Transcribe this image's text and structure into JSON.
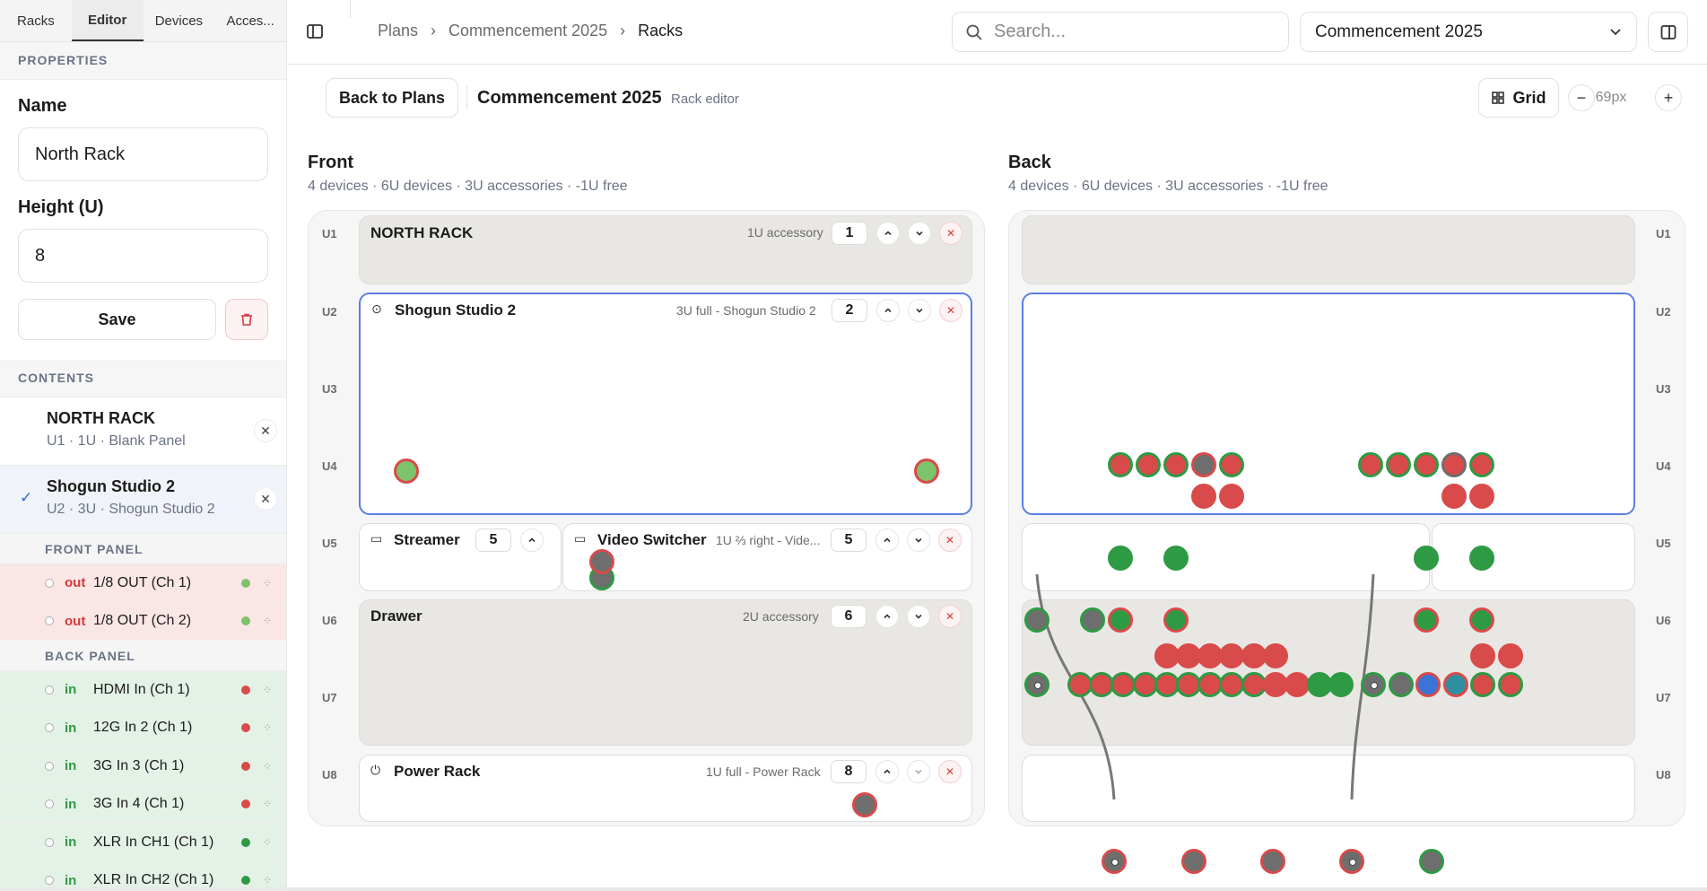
{
  "sidebar": {
    "tabs": [
      {
        "label": "Racks",
        "active": false
      },
      {
        "label": "Editor",
        "active": true
      },
      {
        "label": "Devices",
        "active": false
      },
      {
        "label": "Acces...",
        "active": false
      }
    ],
    "properties": {
      "section_title": "PROPERTIES",
      "name_label": "Name",
      "name_value": "North Rack",
      "height_label": "Height (U)",
      "height_value": "8",
      "save_label": "Save",
      "delete_icon": "trash-icon"
    },
    "contents": {
      "section_title": "CONTENTS",
      "items": [
        {
          "name": "NORTH RACK",
          "sub": "U1 · 1U · Blank Panel",
          "selected": false
        },
        {
          "name": "Shogun Studio 2",
          "sub": "U2 · 3U · Shogun Studio 2",
          "selected": true
        }
      ],
      "front_panel_title": "FRONT PANEL",
      "front_ports": [
        {
          "dir": "out",
          "label": "1/8 OUT (Ch 1)",
          "color": "#7dc36b"
        },
        {
          "dir": "out",
          "label": "1/8 OUT (Ch 2)",
          "color": "#7dc36b"
        }
      ],
      "back_panel_title": "BACK PANEL",
      "back_ports": [
        {
          "dir": "in",
          "label": "HDMI In (Ch 1)",
          "color": "#d94a4a"
        },
        {
          "dir": "in",
          "label": "12G In 2 (Ch 1)",
          "color": "#d94a4a"
        },
        {
          "dir": "in",
          "label": "3G In 3 (Ch 1)",
          "color": "#d94a4a"
        },
        {
          "dir": "in",
          "label": "3G In 4 (Ch 1)",
          "color": "#d94a4a"
        },
        {
          "dir": "in",
          "label": "XLR In CH1 (Ch 1)",
          "color": "#2e9a44"
        },
        {
          "dir": "in",
          "label": "XLR In CH2 (Ch 1)",
          "color": "#2e9a44"
        }
      ]
    }
  },
  "topbar": {
    "breadcrumbs": [
      "Plans",
      "Commencement 2025",
      "Racks"
    ],
    "breadcrumb_sep": "›",
    "search_placeholder": "Search...",
    "plan_select": "Commencement 2025"
  },
  "editor": {
    "back_label": "Back to Plans",
    "title": "Commencement 2025",
    "subtitle": "Rack editor",
    "grid_label": "Grid",
    "zoom": "69px",
    "zoom_out": "−",
    "zoom_in": "+"
  },
  "rack": {
    "units": [
      "U1",
      "U2",
      "U3",
      "U4",
      "U5",
      "U6",
      "U7",
      "U8"
    ],
    "front": {
      "title": "Front",
      "summary": "4 devices · 6U devices · 3U accessories · -1U free",
      "devices": [
        {
          "name": "NORTH RACK",
          "meta": "1U accessory",
          "u": "1"
        },
        {
          "name": "Shogun Studio 2",
          "meta": "3U full - Shogun Studio 2",
          "u": "2"
        },
        {
          "name": "Streamer",
          "meta": "",
          "u": "5"
        },
        {
          "name": "Video Switcher",
          "meta": "1U ⅔ right - Vide...",
          "u": "5"
        },
        {
          "name": "Drawer",
          "meta": "2U accessory",
          "u": "6"
        },
        {
          "name": "Power Rack",
          "meta": "1U full - Power Rack",
          "u": "8"
        }
      ]
    },
    "back": {
      "title": "Back",
      "summary": "4 devices · 6U devices · 3U accessories · -1U free"
    }
  },
  "colors": {
    "red": "#d94a4a",
    "green": "#2e9a44",
    "light_green": "#7dc36b",
    "grey": "#6e6e6e",
    "blue": "#3a74d6",
    "teal": "#2e8fa0",
    "selection": "#5b7ee5"
  }
}
